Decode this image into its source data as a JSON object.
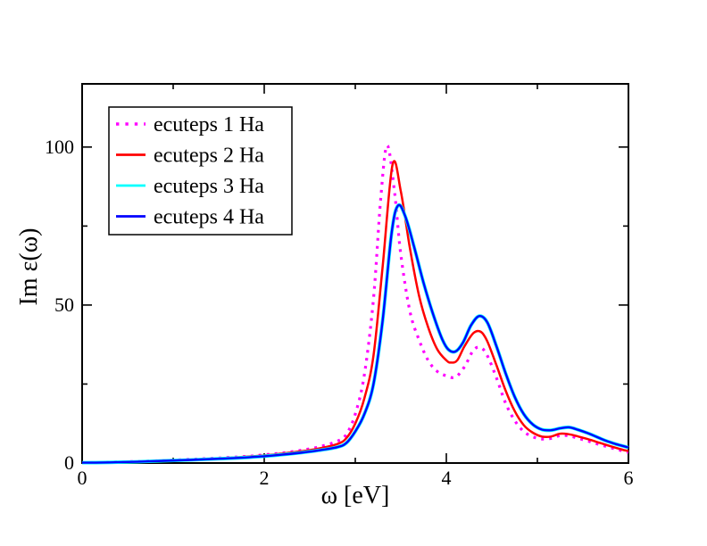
{
  "figure": {
    "background": "#ffffff"
  },
  "legend": {
    "items": [
      {
        "label": "ecuteps 1 Ha",
        "color": "#ff00ff",
        "style": "dotted"
      },
      {
        "label": "ecuteps 2 Ha",
        "color": "#ff0000",
        "style": "solid"
      },
      {
        "label": "ecuteps 3 Ha",
        "color": "#00ffff",
        "style": "solid"
      },
      {
        "label": "ecuteps 4 Ha",
        "color": "#0000ff",
        "style": "solid"
      }
    ]
  },
  "chart_data": {
    "type": "line",
    "title": "",
    "xlabel": "ω [eV]",
    "ylabel": "Im ε(ω)",
    "xlim": [
      0,
      6
    ],
    "ylim": [
      0,
      120
    ],
    "grid": false,
    "legend_position": "upper-left",
    "frame_color": "#000000",
    "x_ticks": {
      "major": [
        0,
        2,
        4,
        6
      ],
      "labels": [
        "0",
        "2",
        "4",
        "6"
      ],
      "minor": [
        1,
        3,
        5
      ]
    },
    "y_ticks": {
      "major": [
        0,
        50,
        100
      ],
      "labels": [
        "0",
        "50",
        "100"
      ],
      "minor": [
        25,
        75
      ]
    },
    "series": [
      {
        "name": "ecuteps 1 Ha",
        "color": "#ff00ff",
        "style": "dotted",
        "width": 3.2,
        "x": [
          0,
          0.3,
          0.6,
          0.9,
          1.2,
          1.5,
          1.8,
          2.0,
          2.2,
          2.4,
          2.6,
          2.8,
          2.9,
          3.0,
          3.1,
          3.2,
          3.28,
          3.35,
          3.43,
          3.5,
          3.6,
          3.7,
          3.8,
          3.9,
          4.0,
          4.1,
          4.2,
          4.3,
          4.38,
          4.45,
          4.55,
          4.65,
          4.75,
          4.85,
          4.95,
          5.05,
          5.15,
          5.25,
          5.35,
          5.45,
          5.55,
          5.65,
          5.75,
          5.85,
          5.95,
          6.0
        ],
        "y": [
          0.1,
          0.3,
          0.5,
          0.8,
          1.2,
          1.6,
          2.1,
          2.6,
          3.2,
          4.0,
          5.1,
          6.9,
          9.0,
          15.5,
          28,
          52,
          84,
          100.5,
          86,
          66,
          48,
          39,
          32.5,
          29,
          27.6,
          27.2,
          30.5,
          35.8,
          36.5,
          34,
          27,
          19,
          13.5,
          10,
          8.3,
          7.6,
          7.8,
          8.7,
          8.6,
          7.8,
          7.0,
          6.1,
          5.3,
          4.5,
          3.7,
          3.4
        ]
      },
      {
        "name": "ecuteps 2 Ha",
        "color": "#ff0000",
        "style": "solid",
        "width": 2.5,
        "x": [
          0,
          0.3,
          0.6,
          0.9,
          1.2,
          1.5,
          1.8,
          2.0,
          2.2,
          2.4,
          2.6,
          2.8,
          2.9,
          3.0,
          3.1,
          3.2,
          3.3,
          3.41,
          3.5,
          3.6,
          3.7,
          3.8,
          3.9,
          4.0,
          4.05,
          4.12,
          4.2,
          4.3,
          4.38,
          4.45,
          4.55,
          4.65,
          4.75,
          4.85,
          4.95,
          5.05,
          5.15,
          5.25,
          5.35,
          5.45,
          5.55,
          5.65,
          5.75,
          5.85,
          5.95,
          6.0
        ],
        "y": [
          0.1,
          0.25,
          0.45,
          0.75,
          1.1,
          1.5,
          2.0,
          2.4,
          3.0,
          3.7,
          4.6,
          6.0,
          7.8,
          12.5,
          20.5,
          34,
          62,
          94.5,
          86,
          68,
          53,
          43,
          36,
          32.5,
          31.8,
          32.5,
          37,
          41.2,
          41.5,
          38.5,
          31,
          23,
          16.5,
          12,
          9.6,
          8.4,
          8.4,
          9.3,
          9.1,
          8.4,
          7.6,
          6.7,
          5.8,
          4.9,
          4.1,
          3.8
        ]
      },
      {
        "name": "ecuteps 3 Ha",
        "color": "#00ffff",
        "style": "solid",
        "width": 3.8,
        "x": [
          0,
          0.3,
          0.6,
          0.9,
          1.2,
          1.5,
          1.8,
          2.0,
          2.2,
          2.4,
          2.6,
          2.8,
          2.9,
          3.0,
          3.1,
          3.2,
          3.3,
          3.4,
          3.47,
          3.55,
          3.65,
          3.75,
          3.85,
          3.95,
          4.02,
          4.1,
          4.18,
          4.27,
          4.36,
          4.45,
          4.55,
          4.65,
          4.75,
          4.85,
          4.95,
          5.05,
          5.15,
          5.25,
          5.35,
          5.45,
          5.55,
          5.65,
          5.75,
          5.85,
          5.95,
          6.0
        ],
        "y": [
          0.1,
          0.2,
          0.4,
          0.7,
          1.0,
          1.35,
          1.75,
          2.15,
          2.65,
          3.25,
          4.0,
          5.0,
          6.3,
          10.0,
          15.5,
          25,
          45,
          73,
          81.5,
          78,
          68,
          57,
          47.5,
          39.5,
          36,
          35.3,
          38,
          43.5,
          46.5,
          44.5,
          37,
          28.5,
          21,
          15.5,
          12.2,
          10.6,
          10.4,
          11.0,
          11.3,
          10.5,
          9.5,
          8.3,
          7.1,
          6.1,
          5.3,
          4.9
        ]
      },
      {
        "name": "ecuteps 4 Ha",
        "color": "#0000ff",
        "style": "solid",
        "width": 2.4,
        "x": [
          0,
          0.3,
          0.6,
          0.9,
          1.2,
          1.5,
          1.8,
          2.0,
          2.2,
          2.4,
          2.6,
          2.8,
          2.9,
          3.0,
          3.1,
          3.2,
          3.3,
          3.4,
          3.47,
          3.55,
          3.65,
          3.75,
          3.85,
          3.95,
          4.02,
          4.1,
          4.18,
          4.27,
          4.36,
          4.45,
          4.55,
          4.65,
          4.75,
          4.85,
          4.95,
          5.05,
          5.15,
          5.25,
          5.35,
          5.45,
          5.55,
          5.65,
          5.75,
          5.85,
          5.95,
          6.0
        ],
        "y": [
          0.1,
          0.2,
          0.4,
          0.7,
          1.0,
          1.35,
          1.75,
          2.15,
          2.65,
          3.25,
          4.0,
          5.0,
          6.3,
          10.0,
          15.5,
          25,
          45,
          73,
          81.5,
          78,
          68,
          57,
          47.5,
          39.5,
          36,
          35.3,
          38,
          43.5,
          46.5,
          44.5,
          37,
          28.5,
          21,
          15.5,
          12.2,
          10.6,
          10.4,
          11.0,
          11.3,
          10.5,
          9.5,
          8.3,
          7.1,
          6.1,
          5.3,
          4.9
        ]
      }
    ]
  }
}
